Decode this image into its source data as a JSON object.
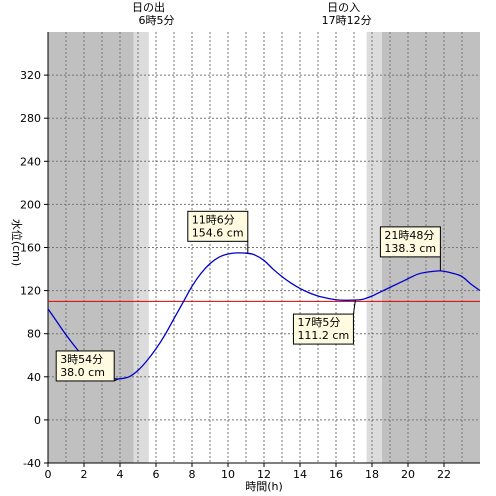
{
  "chart_data": {
    "type": "line",
    "xlabel": "時間(h)",
    "ylabel": "水位(cm)",
    "xlim": [
      0,
      24
    ],
    "ylim": [
      -40,
      360
    ],
    "x_ticks": [
      0,
      2,
      4,
      6,
      8,
      10,
      12,
      14,
      16,
      18,
      20,
      22
    ],
    "y_ticks": [
      -40,
      0,
      40,
      80,
      120,
      160,
      200,
      240,
      280,
      320
    ],
    "reference_line": {
      "y": 110,
      "color": "#e00000"
    },
    "line_color": "#0000cc",
    "night_color": "#c0c0c0",
    "twilight_color": "#dcdcdc",
    "sunrise": {
      "title": "日の出",
      "time_label": "6時5分",
      "hour": 6.083
    },
    "sunset": {
      "title": "日の入",
      "time_label": "17時12分",
      "hour": 17.2
    },
    "twilight_bands": [
      [
        4.75,
        5.6
      ],
      [
        17.7,
        18.55
      ]
    ],
    "night_bands": [
      [
        0,
        4.75
      ],
      [
        18.55,
        24
      ]
    ],
    "series": [
      {
        "x": [
          0,
          0.5,
          1,
          1.5,
          2,
          2.5,
          3,
          3.5,
          3.9,
          4.5,
          5,
          5.5,
          6,
          6.5,
          7,
          7.5,
          8,
          8.5,
          9,
          9.5,
          10,
          10.5,
          11.1,
          11.5,
          12,
          12.5,
          13,
          13.5,
          14,
          14.5,
          15,
          15.5,
          16,
          16.5,
          17.08,
          17.5,
          18,
          18.5,
          19,
          19.5,
          20,
          20.5,
          21,
          21.8,
          22.5,
          23,
          23.5,
          24
        ],
        "y": [
          103,
          91,
          79,
          68,
          58,
          50,
          43,
          39,
          38,
          40,
          46,
          55,
          66,
          79,
          94,
          109,
          124,
          136,
          145,
          151,
          154,
          155,
          154.6,
          153,
          148,
          140,
          133,
          127,
          122,
          118,
          115,
          113,
          111.5,
          111,
          111.2,
          112,
          115,
          119,
          123,
          127,
          131,
          135,
          137,
          138.3,
          136,
          133,
          126,
          120
        ]
      }
    ],
    "annotations": [
      {
        "time": "3時54分",
        "value": "38.0 cm",
        "x": 3.9,
        "y": 38.0
      },
      {
        "time": "11時6分",
        "value": "154.6 cm",
        "x": 11.1,
        "y": 154.6
      },
      {
        "time": "17時5分",
        "value": "111.2 cm",
        "x": 17.08,
        "y": 111.2
      },
      {
        "time": "21時48分",
        "value": "138.3 cm",
        "x": 21.8,
        "y": 138.3
      }
    ]
  }
}
